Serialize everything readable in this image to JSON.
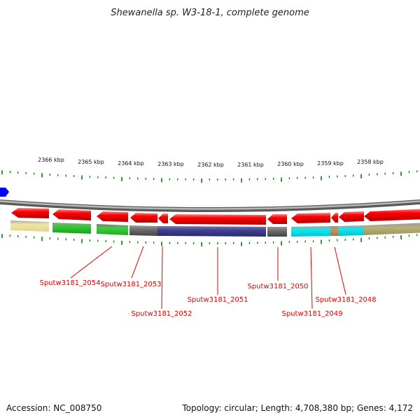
{
  "title": "Shewanella sp. W3-18-1, complete genome",
  "kbp_labels": [
    "2366 kbp",
    "2365 kbp",
    "2364 kbp",
    "2363 kbp",
    "2362 kbp",
    "2361 kbp",
    "2360 kbp",
    "2359 kbp",
    "2358 kbp"
  ],
  "gene_labels": [
    "Sputw3181_2054",
    "Sputw3181_2053",
    "Sputw3181_2052",
    "Sputw3181_2051",
    "Sputw3181_2050",
    "Sputw3181_2049",
    "Sputw3181_2048"
  ],
  "footer": {
    "accession": "Accession: NC_008750",
    "topology": "Topology: circular; Length: 4,708,380 bp; Genes: 4,172"
  },
  "colors": {
    "gene_arrow": "#ff0000",
    "backbone": "#888888",
    "tick": "#0a7a0a",
    "label": "#e00000",
    "marker": "#0000ff"
  }
}
